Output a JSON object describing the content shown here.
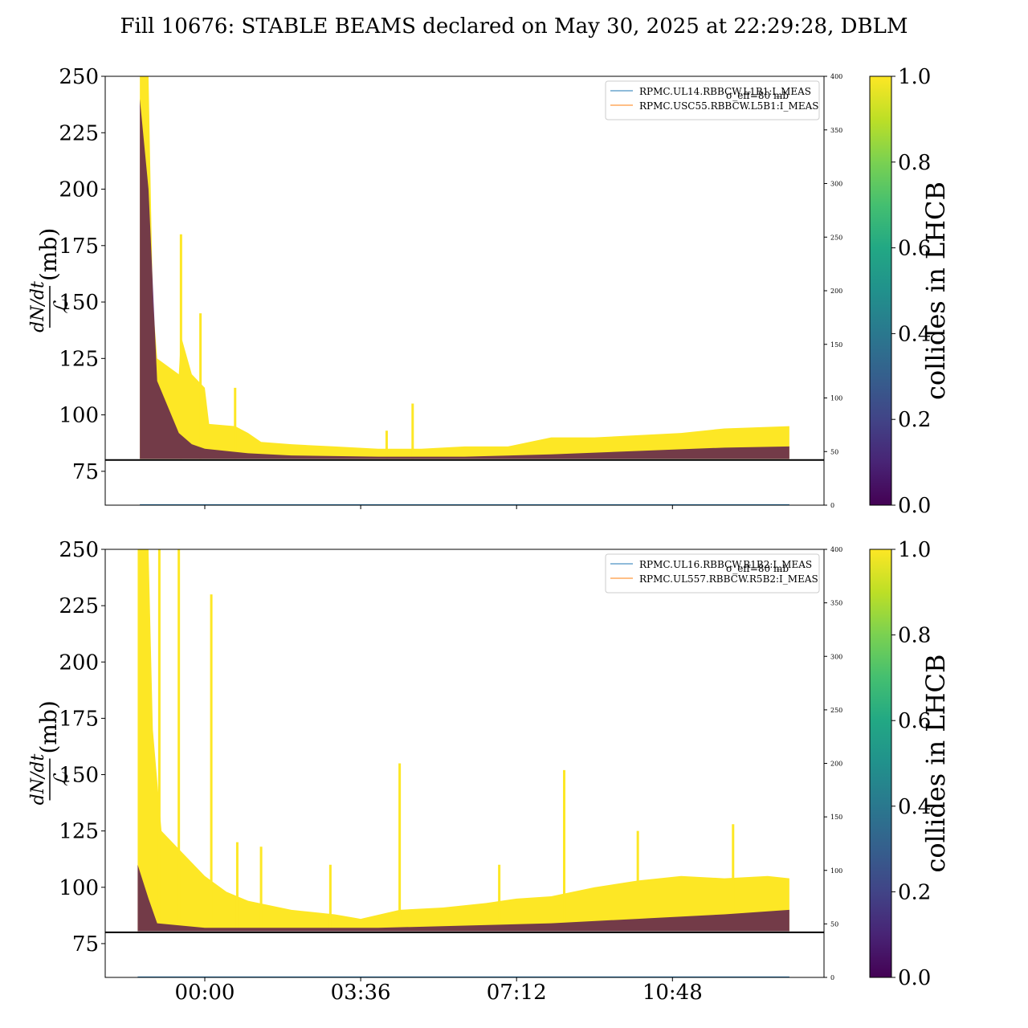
{
  "title": "Fill 10676: STABLE BEAMS declared on May 30, 2025 at 22:29:28, DBLM",
  "colors": {
    "yellow": "#fde725",
    "dark": "#440154",
    "blue_line": "#1f77b4",
    "orange_line": "#ff7f0e",
    "threshold": "#000000"
  },
  "chart_data": [
    {
      "type": "area",
      "ylabel_top": "dN/dt",
      "ylabel_bottom": "ℒ",
      "ylabel_unit": "(mb)",
      "ylim": [
        60,
        250
      ],
      "yticks": [
        75,
        100,
        125,
        150,
        175,
        200,
        225,
        250
      ],
      "ylim_right": [
        0,
        400
      ],
      "yticks_right": [
        0,
        50,
        100,
        150,
        200,
        250,
        300,
        350,
        400
      ],
      "xlim_hours": [
        -2.3,
        14.3
      ],
      "xticks": [],
      "threshold": 80,
      "faint_label": "σ_eff=80 mb",
      "legend": [
        "RPMC.UL14.RBBCW.L1B1:I_MEAS",
        "RPMC.USC55.RBBCW.L5B1:I_MEAS"
      ],
      "legend_placement": "upper right",
      "colorbar": {
        "label": "collides in LHCB",
        "ticks": [
          "0.0",
          "0.2",
          "0.4",
          "0.6",
          "0.8",
          "1.0"
        ]
      },
      "yellow_upper": [
        [
          -1.5,
          250
        ],
        [
          -1.3,
          250
        ],
        [
          -1.2,
          150
        ],
        [
          -1.1,
          125
        ],
        [
          -0.6,
          118
        ],
        [
          -0.55,
          135
        ],
        [
          -0.3,
          118
        ],
        [
          0.0,
          112
        ],
        [
          0.1,
          96
        ],
        [
          0.7,
          95
        ],
        [
          1.0,
          92
        ],
        [
          1.3,
          88
        ],
        [
          2.0,
          87
        ],
        [
          3.0,
          86
        ],
        [
          4.0,
          85
        ],
        [
          5.0,
          85
        ],
        [
          6.0,
          86
        ],
        [
          7.0,
          86
        ],
        [
          7.5,
          88
        ],
        [
          8.0,
          90
        ],
        [
          9.0,
          90
        ],
        [
          10.0,
          91
        ],
        [
          11.0,
          92
        ],
        [
          12.0,
          94
        ],
        [
          13.5,
          95
        ]
      ],
      "yellow_lower": 80.5,
      "dark_upper": [
        [
          -1.5,
          240
        ],
        [
          -1.3,
          200
        ],
        [
          -1.1,
          115
        ],
        [
          -0.6,
          92
        ],
        [
          -0.3,
          87
        ],
        [
          0.0,
          85
        ],
        [
          1.0,
          83
        ],
        [
          2.0,
          82
        ],
        [
          4.0,
          81.5
        ],
        [
          6.0,
          81.5
        ],
        [
          8.0,
          82.5
        ],
        [
          10.0,
          84
        ],
        [
          12.0,
          85.5
        ],
        [
          13.5,
          86
        ]
      ],
      "spikes": [
        [
          -0.55,
          180
        ],
        [
          -0.1,
          145
        ],
        [
          0.7,
          112
        ],
        [
          1.8,
          87
        ],
        [
          4.2,
          93
        ],
        [
          4.8,
          105
        ]
      ]
    },
    {
      "type": "area",
      "ylabel_top": "dN/dt",
      "ylabel_bottom": "ℒ",
      "ylabel_unit": "(mb)",
      "ylim": [
        60,
        250
      ],
      "yticks": [
        75,
        100,
        125,
        150,
        175,
        200,
        225,
        250
      ],
      "ylim_right": [
        0,
        400
      ],
      "yticks_right": [
        0,
        50,
        100,
        150,
        200,
        250,
        300,
        350,
        400
      ],
      "xlim_hours": [
        -2.3,
        14.3
      ],
      "xticks": [
        "00:00",
        "03:36",
        "07:12",
        "10:48"
      ],
      "xtick_hours": [
        0,
        3.6,
        7.2,
        10.8
      ],
      "threshold": 80,
      "faint_label": "σ_eff=80 mb",
      "legend": [
        "RPMC.UL16.RBBCW.R1B2:I_MEAS",
        "RPMC.UL557.RBBCW.R5B2:I_MEAS"
      ],
      "legend_placement": "upper right",
      "colorbar": {
        "label": "collides in LHCB",
        "ticks": [
          "0.0",
          "0.2",
          "0.4",
          "0.6",
          "0.8",
          "1.0"
        ]
      },
      "yellow_upper": [
        [
          -1.55,
          250
        ],
        [
          -1.3,
          250
        ],
        [
          -1.2,
          170
        ],
        [
          -1.0,
          125
        ],
        [
          -0.5,
          115
        ],
        [
          0.0,
          105
        ],
        [
          0.5,
          98
        ],
        [
          1.0,
          94
        ],
        [
          2.0,
          90
        ],
        [
          3.0,
          88
        ],
        [
          3.6,
          86
        ],
        [
          4.5,
          90
        ],
        [
          5.5,
          91
        ],
        [
          6.5,
          93
        ],
        [
          7.2,
          95
        ],
        [
          8.0,
          96
        ],
        [
          9.0,
          100
        ],
        [
          10.0,
          103
        ],
        [
          11.0,
          105
        ],
        [
          12.0,
          104
        ],
        [
          13.0,
          105
        ],
        [
          13.5,
          104
        ]
      ],
      "yellow_lower": 80.5,
      "dark_upper": [
        [
          -1.55,
          110
        ],
        [
          -1.3,
          95
        ],
        [
          -1.1,
          84
        ],
        [
          0.0,
          82
        ],
        [
          4.0,
          82
        ],
        [
          8.0,
          84
        ],
        [
          10.0,
          86
        ],
        [
          12.0,
          88
        ],
        [
          13.5,
          90
        ]
      ],
      "spikes": [
        [
          -1.05,
          250
        ],
        [
          -0.6,
          250
        ],
        [
          0.15,
          230
        ],
        [
          0.75,
          120
        ],
        [
          1.3,
          118
        ],
        [
          2.9,
          110
        ],
        [
          4.5,
          155
        ],
        [
          6.8,
          110
        ],
        [
          8.3,
          152
        ],
        [
          10.0,
          125
        ],
        [
          12.2,
          128
        ]
      ]
    }
  ]
}
